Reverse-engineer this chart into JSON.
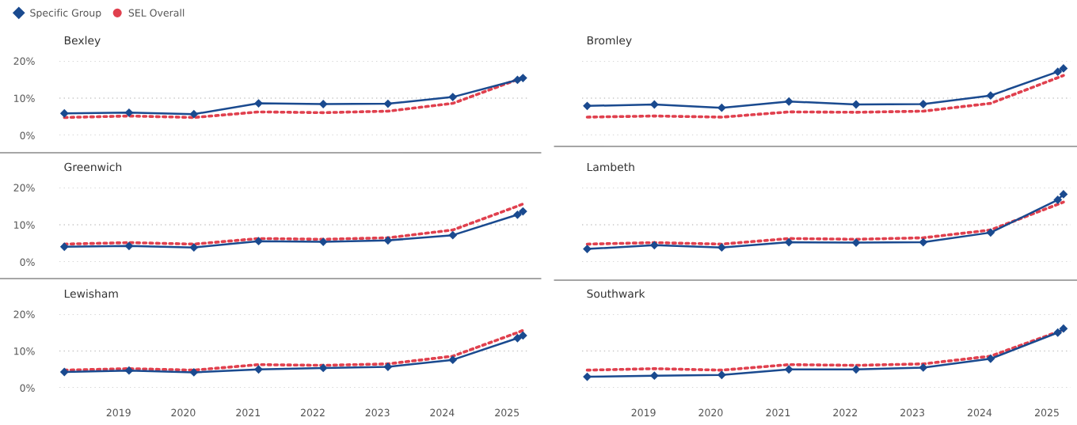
{
  "chart_data": [
    {
      "type": "line",
      "title": "Bexley",
      "x": [
        "2018-03",
        "2019-03",
        "2020-03",
        "2021-03",
        "2022-03",
        "2023-03",
        "2024-03",
        "2025-03",
        "2025-04"
      ],
      "xlim": [
        "2018-02",
        "2025-05-05"
      ],
      "xticks": [
        "2019",
        "2020",
        "2021",
        "2022",
        "2023",
        "2024",
        "2025"
      ],
      "ylim": [
        0,
        20
      ],
      "yticks": [
        {
          "value": 0,
          "label": "0%"
        },
        {
          "value": 10,
          "label": "10%"
        },
        {
          "value": 20,
          "label": "20%"
        }
      ],
      "grid": "y",
      "tick_labels": "y",
      "legend": "top left",
      "series": [
        {
          "name": "Specific Group",
          "color": "#1a4a8f",
          "marker": "diamond",
          "line_style": "solid",
          "values": [
            5.9,
            6.1,
            5.7,
            8.6,
            8.4,
            8.5,
            10.3,
            14.9,
            15.4
          ]
        },
        {
          "name": "SEL Overall",
          "color": "#e0404e",
          "marker": "none",
          "line_style": "dotted",
          "values": [
            4.8,
            5.2,
            4.8,
            6.3,
            6.1,
            6.5,
            8.6,
            15.0,
            15.6
          ]
        }
      ]
    },
    {
      "type": "line",
      "title": "Greenwich",
      "x": [
        "2018-03",
        "2019-03",
        "2020-03",
        "2021-03",
        "2022-03",
        "2023-03",
        "2024-03",
        "2025-03",
        "2025-04"
      ],
      "xlim": [
        "2018-02",
        "2025-05-05"
      ],
      "xticks": [
        "2019",
        "2020",
        "2021",
        "2022",
        "2023",
        "2024",
        "2025"
      ],
      "ylim": [
        0,
        20
      ],
      "yticks": [
        {
          "value": 0,
          "label": "0%"
        },
        {
          "value": 10,
          "label": "10%"
        },
        {
          "value": 20,
          "label": "20%"
        }
      ],
      "grid": "y",
      "tick_labels": "y",
      "series": [
        {
          "color": "#1a4a8f",
          "marker": "diamond",
          "line_style": "solid",
          "values": [
            4.1,
            4.3,
            3.9,
            5.6,
            5.4,
            5.8,
            7.2,
            12.7,
            13.6
          ]
        },
        {
          "color": "#e0404e",
          "marker": "none",
          "line_style": "dotted",
          "values": [
            4.8,
            5.2,
            4.8,
            6.3,
            6.1,
            6.5,
            8.6,
            15.0,
            15.6
          ]
        }
      ]
    },
    {
      "type": "line",
      "title": "Lewisham",
      "x": [
        "2018-03",
        "2019-03",
        "2020-03",
        "2021-03",
        "2022-03",
        "2023-03",
        "2024-03",
        "2025-03",
        "2025-04"
      ],
      "xlim": [
        "2018-02",
        "2025-05-05"
      ],
      "xticks": [
        "2019",
        "2020",
        "2021",
        "2022",
        "2023",
        "2024",
        "2025"
      ],
      "ylim": [
        0,
        20
      ],
      "yticks": [
        {
          "value": 0,
          "label": "0%"
        },
        {
          "value": 10,
          "label": "10%"
        },
        {
          "value": 20,
          "label": "20%"
        }
      ],
      "grid": "y",
      "series": [
        {
          "color": "#1a4a8f",
          "marker": "diamond",
          "line_style": "solid",
          "values": [
            4.3,
            4.7,
            4.2,
            5.0,
            5.4,
            5.7,
            7.6,
            13.5,
            14.2
          ]
        },
        {
          "color": "#e0404e",
          "marker": "none",
          "line_style": "dotted",
          "values": [
            4.8,
            5.2,
            4.8,
            6.3,
            6.1,
            6.5,
            8.6,
            15.0,
            15.6
          ]
        }
      ]
    },
    {
      "type": "line",
      "title": "Bromley",
      "x": [
        "2018-03",
        "2019-03",
        "2020-03",
        "2021-03",
        "2022-03",
        "2023-03",
        "2024-03",
        "2025-03",
        "2025-04"
      ],
      "xlim": [
        "2018-02",
        "2025-05-10"
      ],
      "xticks": [
        "2019",
        "2020",
        "2021",
        "2022",
        "2023",
        "2024",
        "2025"
      ],
      "ylim": [
        0,
        20
      ],
      "yticks": [
        {
          "value": 0,
          "label": null
        },
        {
          "value": 10,
          "label": null
        },
        {
          "value": 20,
          "label": null
        }
      ],
      "grid": "y",
      "tick_labels": false,
      "series": [
        {
          "color": "#1a4a8f",
          "marker": "diamond",
          "line_style": "solid",
          "values": [
            7.9,
            8.3,
            7.4,
            9.1,
            8.3,
            8.4,
            10.7,
            17.1,
            18.0
          ]
        },
        {
          "color": "#e0404e",
          "marker": "none",
          "line_style": "dotted",
          "values": [
            4.9,
            5.2,
            4.9,
            6.3,
            6.2,
            6.5,
            8.6,
            15.5,
            16.1
          ]
        }
      ]
    },
    {
      "type": "line",
      "title": "Lambeth",
      "x": [
        "2018-03",
        "2019-03",
        "2020-03",
        "2021-03",
        "2022-03",
        "2023-03",
        "2024-03",
        "2025-03",
        "2025-04"
      ],
      "xlim": [
        "2018-02",
        "2025-05-10"
      ],
      "xticks": [
        "2019",
        "2020",
        "2021",
        "2022",
        "2023",
        "2024",
        "2025"
      ],
      "ylim": [
        0,
        20
      ],
      "yticks": [
        {
          "value": 0,
          "label": null
        },
        {
          "value": 10,
          "label": null
        },
        {
          "value": 20,
          "label": null
        }
      ],
      "grid": "y",
      "tick_labels": false,
      "series": [
        {
          "color": "#1a4a8f",
          "marker": "diamond",
          "line_style": "solid",
          "values": [
            3.5,
            4.5,
            3.9,
            5.3,
            5.2,
            5.3,
            7.9,
            16.7,
            18.2
          ]
        },
        {
          "color": "#e0404e",
          "marker": "none",
          "line_style": "dotted",
          "values": [
            4.8,
            5.2,
            4.8,
            6.3,
            6.1,
            6.5,
            8.6,
            15.5,
            16.1
          ]
        }
      ]
    },
    {
      "type": "line",
      "title": "Southwark",
      "x": [
        "2018-03",
        "2019-03",
        "2020-03",
        "2021-03",
        "2022-03",
        "2023-03",
        "2024-03",
        "2025-03",
        "2025-04"
      ],
      "xlim": [
        "2018-02",
        "2025-05-10"
      ],
      "xticks": [
        "2019",
        "2020",
        "2021",
        "2022",
        "2023",
        "2024",
        "2025"
      ],
      "ylim": [
        0,
        20
      ],
      "yticks": [
        {
          "value": 0,
          "label": null
        },
        {
          "value": 10,
          "label": null
        },
        {
          "value": 20,
          "label": null
        }
      ],
      "grid": "y",
      "tick_labels": "x",
      "series": [
        {
          "color": "#1a4a8f",
          "marker": "diamond",
          "line_style": "solid",
          "values": [
            3.0,
            3.3,
            3.5,
            5.0,
            5.0,
            5.5,
            7.9,
            15.0,
            16.1
          ]
        },
        {
          "color": "#e0404e",
          "marker": "none",
          "line_style": "dotted",
          "values": [
            4.8,
            5.2,
            4.8,
            6.3,
            6.1,
            6.5,
            8.6,
            15.2,
            15.8
          ]
        }
      ]
    }
  ]
}
